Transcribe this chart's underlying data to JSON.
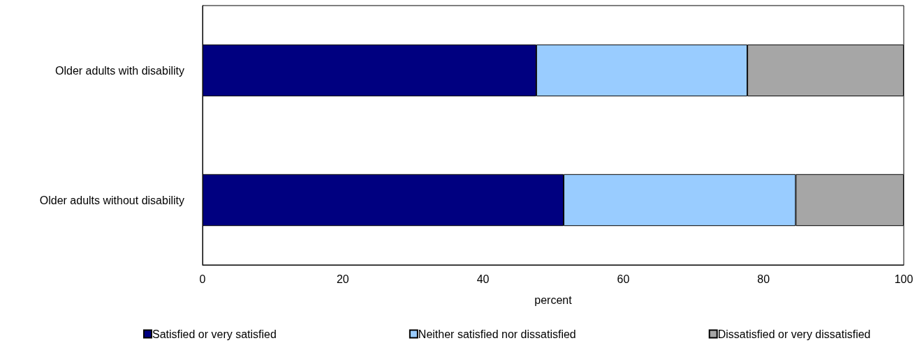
{
  "chart_data": {
    "type": "bar",
    "orientation": "horizontal",
    "stacked": true,
    "categories": [
      "Older adults with disability",
      "Older adults without disability"
    ],
    "series": [
      {
        "name": "Satisfied or very satisfied",
        "color": "#000080",
        "values": [
          47.6,
          51.5
        ]
      },
      {
        "name": "Neither satisfied nor dissatisfied",
        "color": "#99ccff",
        "values": [
          30.1,
          33.1
        ]
      },
      {
        "name": "Dissatisfied or very dissatisfied",
        "color": "#a6a6a6",
        "values": [
          22.3,
          15.4
        ]
      }
    ],
    "xlabel": "percent",
    "xlim": [
      0,
      100
    ],
    "xticks": [
      0,
      20,
      40,
      60,
      80,
      100
    ],
    "grid": false,
    "legend": "bottom"
  }
}
